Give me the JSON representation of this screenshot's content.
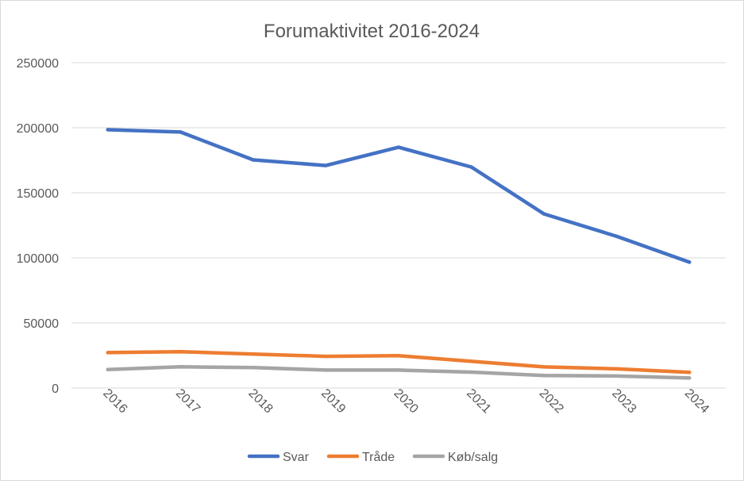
{
  "chart_data": {
    "type": "line",
    "title": "Forumaktivitet 2016-2024",
    "xlabel": "",
    "ylabel": "",
    "categories": [
      "2016",
      "2017",
      "2018",
      "2019",
      "2020",
      "2021",
      "2022",
      "2023",
      "2024"
    ],
    "ylim": [
      0,
      250000
    ],
    "yticks": [
      0,
      50000,
      100000,
      150000,
      200000,
      250000
    ],
    "grid": true,
    "legend_position": "bottom",
    "series": [
      {
        "name": "Svar",
        "color": "#4472c4",
        "values": [
          198500,
          196700,
          175300,
          171000,
          185000,
          169800,
          133800,
          116500,
          96700
        ]
      },
      {
        "name": "Tråde",
        "color": "#ed7d31",
        "values": [
          27200,
          27900,
          26100,
          24300,
          24800,
          20500,
          16200,
          14700,
          12000
        ]
      },
      {
        "name": "Køb/salg",
        "color": "#a5a5a5",
        "values": [
          14200,
          16300,
          15700,
          13800,
          13800,
          12200,
          9600,
          9200,
          7700
        ]
      }
    ]
  }
}
